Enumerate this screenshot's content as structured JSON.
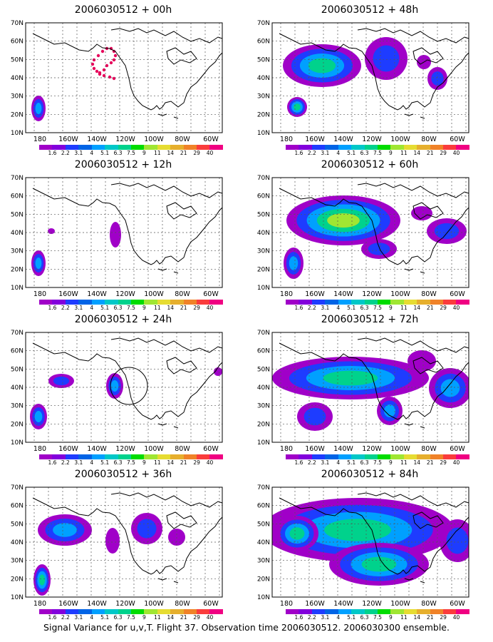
{
  "panels": [
    {
      "title": "2006030512 + 00h"
    },
    {
      "title": "2006030512 + 48h"
    },
    {
      "title": "2006030512 + 12h"
    },
    {
      "title": "2006030512 + 60h"
    },
    {
      "title": "2006030512 + 24h"
    },
    {
      "title": "2006030512 + 72h"
    },
    {
      "title": "2006030512 + 36h"
    },
    {
      "title": "2006030512 + 84h"
    }
  ],
  "lat_labels": [
    "10N",
    "20N",
    "30N",
    "40N",
    "50N",
    "60N",
    "70N"
  ],
  "lon_labels": [
    "180",
    "160W",
    "140W",
    "120W",
    "100W",
    "80W",
    "60W"
  ],
  "colorbar": {
    "labels": [
      "1.6",
      "2.2",
      "3.1",
      "4",
      "5.1",
      "6.3",
      "7.5",
      "9",
      "11",
      "14",
      "21",
      "29",
      "40"
    ],
    "colors": [
      "#a000c8",
      "#8200dc",
      "#1e3cff",
      "#0064e6",
      "#00a0ff",
      "#00c8c8",
      "#00d28c",
      "#00dc00",
      "#a0e632",
      "#e6dc32",
      "#e6af2d",
      "#f08228",
      "#fa3c3c",
      "#f00082"
    ]
  },
  "caption": "Signal Variance for u,v,T. Flight 37. Observation time 2006030512. 2006030300 ensemble."
}
